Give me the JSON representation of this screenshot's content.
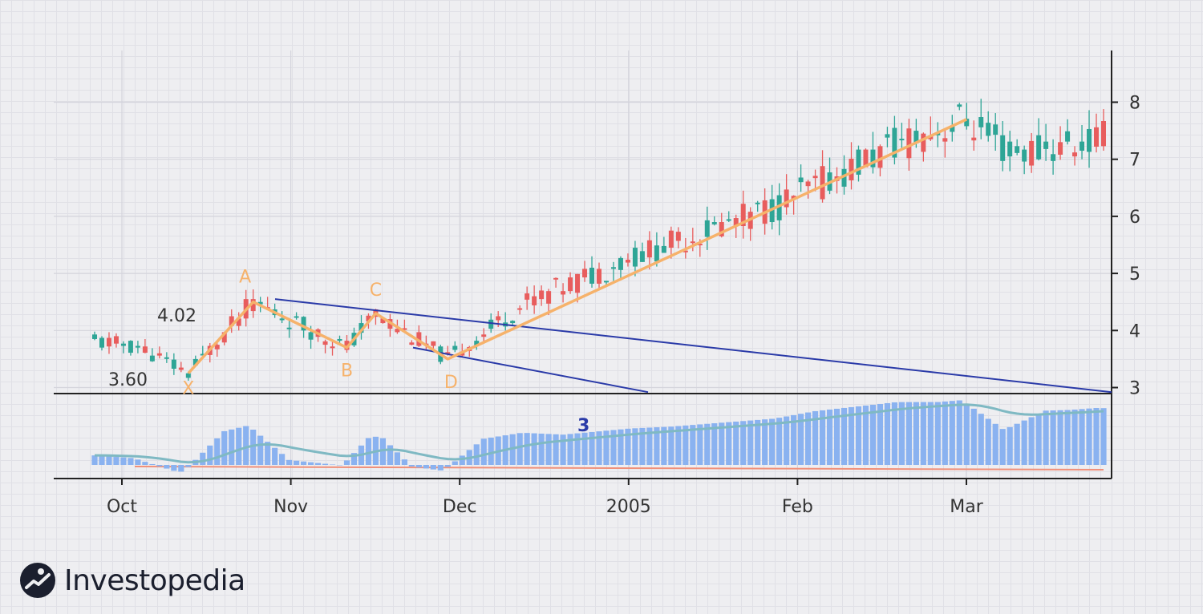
{
  "brand": {
    "name": "Investopedia",
    "logo_icon": "investopedia-logo-icon"
  },
  "colors": {
    "up": "#2ea596",
    "down": "#e85d5d",
    "pattern": "#f6b26b",
    "channel": "#2a3aa8",
    "histogram": "#8ab2f0",
    "signal": "#7fb9c3",
    "zero": "#f0907a"
  },
  "chart_data": {
    "type": "candlestick",
    "subtype": "harmonic-pattern-with-indicator",
    "x_axis": {
      "ticks": [
        "Oct",
        "Nov",
        "Dec",
        "2005",
        "Feb",
        "Mar"
      ]
    },
    "y_axis": {
      "side": "right",
      "ticks": [
        3,
        4,
        5,
        6,
        7,
        8
      ],
      "range": [
        2.9,
        8.9
      ]
    },
    "grid": true,
    "annotations": [
      {
        "text": "4.02",
        "value": 4.02
      },
      {
        "text": "3.60",
        "value": 3.6
      }
    ],
    "pattern_points": [
      {
        "label": "X",
        "value": 3.25
      },
      {
        "label": "A",
        "value": 4.5
      },
      {
        "label": "B",
        "value": 3.7
      },
      {
        "label": "C",
        "value": 4.3
      },
      {
        "label": "D",
        "value": 3.5
      }
    ],
    "pattern_end_value": 7.7,
    "indicator": {
      "label": "3"
    },
    "candles": []
  }
}
